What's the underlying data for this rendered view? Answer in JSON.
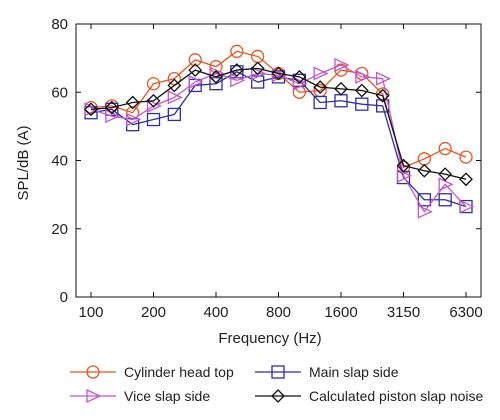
{
  "chart_data": {
    "type": "line",
    "xlabel": "Frequency (Hz)",
    "ylabel": "SPL/dB (A)",
    "ylim": [
      0,
      80
    ],
    "yticks": [
      0,
      20,
      40,
      60,
      80
    ],
    "x_categories": [
      "100",
      "125",
      "160",
      "200",
      "250",
      "315",
      "400",
      "500",
      "630",
      "800",
      "1000",
      "1250",
      "1600",
      "2000",
      "2500",
      "3150",
      "4000",
      "5000",
      "6300"
    ],
    "xtick_labels": [
      {
        "index": 0,
        "label": "100"
      },
      {
        "index": 3,
        "label": "200"
      },
      {
        "index": 6,
        "label": "400"
      },
      {
        "index": 9,
        "label": "800"
      },
      {
        "index": 12,
        "label": "1600"
      },
      {
        "index": 15,
        "label": "3150"
      },
      {
        "index": 18,
        "label": "6300"
      }
    ],
    "grid": false,
    "legend_placement": "bottom",
    "series": [
      {
        "name": "Cylinder head top",
        "color": "#e8541f",
        "marker": "circle",
        "values": [
          55.5,
          56,
          54,
          62.5,
          64,
          69.5,
          67.5,
          72,
          70.5,
          65.5,
          60,
          60.5,
          66.5,
          65.5,
          59.5,
          38,
          40.5,
          43.5,
          41
        ]
      },
      {
        "name": "Main slap side",
        "color": "#2e2ea3",
        "marker": "square",
        "values": [
          54,
          55,
          50.5,
          52,
          53.5,
          62,
          62.5,
          66,
          63,
          64.5,
          63.5,
          57,
          57.5,
          56.5,
          56,
          35,
          28.5,
          28.5,
          26.5
        ]
      },
      {
        "name": "Vice slap side",
        "color": "#c257cc",
        "marker": "triangle-right",
        "values": [
          55,
          53,
          52,
          56,
          58.5,
          63,
          65.5,
          63.5,
          65.5,
          65,
          62.5,
          65.5,
          68,
          64.5,
          64,
          35.5,
          25,
          33,
          26.5
        ]
      },
      {
        "name": "Calculated piston slap noise",
        "color": "#111111",
        "marker": "diamond",
        "values": [
          55,
          55.5,
          57,
          57.5,
          62,
          66.5,
          64.5,
          66.5,
          67,
          65.5,
          64.5,
          61.5,
          61,
          60.5,
          59,
          38.5,
          37,
          36,
          34.5
        ]
      }
    ]
  }
}
